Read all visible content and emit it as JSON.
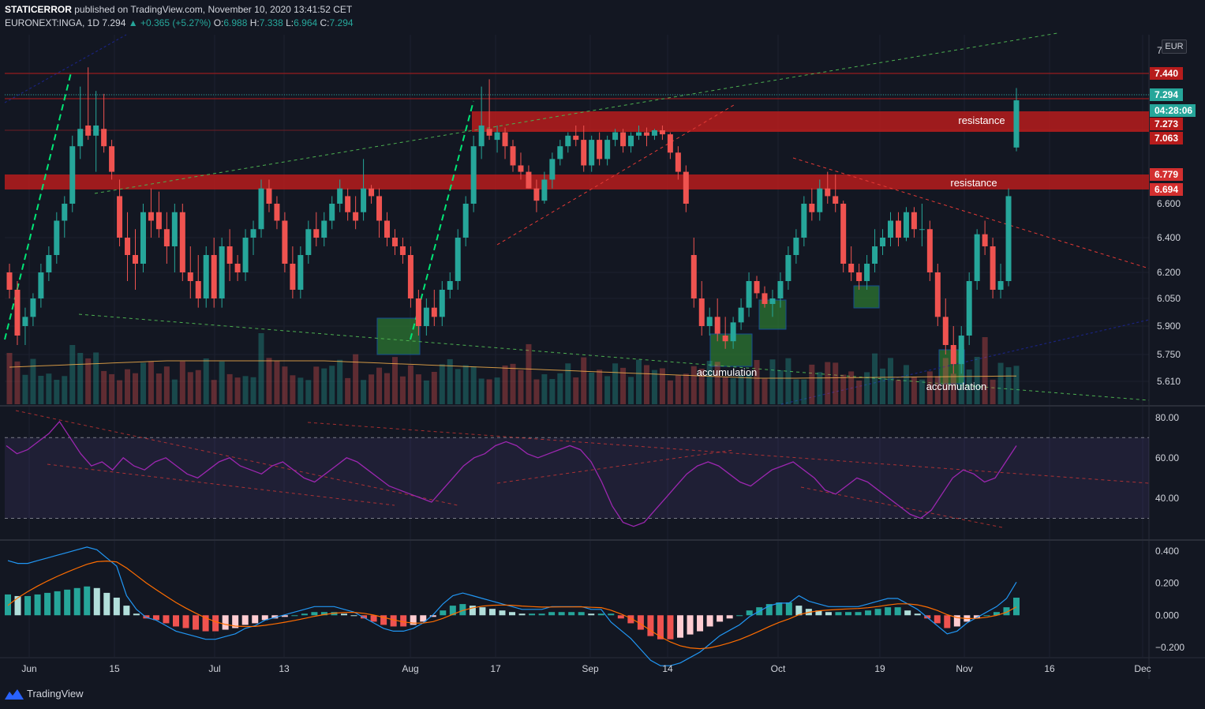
{
  "header": {
    "publisher": "STATICERROR",
    "published_text": "published on TradingView.com, November 10, 2020 13:41:52 CET",
    "symbol": "EURONEXT:INGA, 1D",
    "last": "7.294",
    "change": "▲ +0.365 (+5.27%)",
    "open_label": "O:",
    "open": "6.988",
    "high_label": "H:",
    "high": "7.338",
    "low_label": "L:",
    "low": "6.964",
    "close_label": "C:",
    "close": "7.294"
  },
  "currency": "EUR",
  "footer": {
    "brand": "TradingView"
  },
  "colors": {
    "up": "#26a69a",
    "down": "#ef5350",
    "bg": "#131722",
    "zone": "#b71c1c",
    "accum": "#2e7d32",
    "rsi": "#9c27b0",
    "macd": "#2196f3",
    "signal": "#ff6d00"
  },
  "price_axis": {
    "labels": [
      "7",
      "6.600",
      "6.400",
      "6.200",
      "6.050",
      "5.900",
      "5.750",
      "5.610"
    ]
  },
  "price_badges": [
    {
      "text": "7.440",
      "color": "#b71c1c"
    },
    {
      "text": "7.294",
      "color": "#26a69a"
    },
    {
      "text": "04:28:06",
      "color": "#26a69a"
    },
    {
      "text": "7.273",
      "color": "#b71c1c"
    },
    {
      "text": "7.063",
      "color": "#b71c1c"
    },
    {
      "text": "6.779",
      "color": "#d32f2f"
    },
    {
      "text": "6.694",
      "color": "#d32f2f"
    }
  ],
  "rsi_axis": {
    "labels": [
      "80.00",
      "60.00",
      "40.00"
    ]
  },
  "macd_axis": {
    "labels": [
      "0.400",
      "0.200",
      "0.000",
      "−0.200"
    ]
  },
  "time_axis": {
    "labels": [
      "Jun",
      "15",
      "Jul",
      "13",
      "Aug",
      "17",
      "Sep",
      "14",
      "Oct",
      "19",
      "Nov",
      "16",
      "Dec"
    ]
  },
  "annotations": {
    "resistance_upper": "resistance",
    "resistance_lower": "resistance",
    "accumulation_1": "accumulation",
    "accumulation_2": "accumulation"
  },
  "chart_data": [
    {
      "type": "candlestick",
      "title": "EURONEXT:INGA, 1D",
      "ylabel": "EUR",
      "ylim": [
        5.5,
        7.5
      ],
      "zones": [
        {
          "name": "resistance",
          "from": 7.063,
          "to": 7.273
        },
        {
          "name": "resistance",
          "from": 6.694,
          "to": 6.779
        }
      ],
      "lines": [
        {
          "name": "horizontal",
          "value": 7.44
        }
      ],
      "candles": [
        [
          6.2,
          6.25,
          6.05,
          6.1
        ],
        [
          6.1,
          6.15,
          5.8,
          5.85
        ],
        [
          5.9,
          6.0,
          5.8,
          5.95
        ],
        [
          5.95,
          6.08,
          5.9,
          6.05
        ],
        [
          6.05,
          6.25,
          6.0,
          6.2
        ],
        [
          6.2,
          6.35,
          6.15,
          6.3
        ],
        [
          6.3,
          6.55,
          6.25,
          6.5
        ],
        [
          6.5,
          6.65,
          6.4,
          6.6
        ],
        [
          6.6,
          7.1,
          6.55,
          7.0
        ],
        [
          7.0,
          7.35,
          6.9,
          7.2
        ],
        [
          7.25,
          7.48,
          7.05,
          7.1
        ],
        [
          7.1,
          7.32,
          6.8,
          7.25
        ],
        [
          7.2,
          7.3,
          6.95,
          7.0
        ],
        [
          7.0,
          7.05,
          6.75,
          6.8
        ],
        [
          6.65,
          6.75,
          6.35,
          6.4
        ],
        [
          6.4,
          6.55,
          6.15,
          6.3
        ],
        [
          6.3,
          6.45,
          6.1,
          6.25
        ],
        [
          6.25,
          6.6,
          6.2,
          6.55
        ],
        [
          6.55,
          6.7,
          6.4,
          6.5
        ],
        [
          6.55,
          6.68,
          6.4,
          6.45
        ],
        [
          6.45,
          6.55,
          6.25,
          6.35
        ],
        [
          6.35,
          6.6,
          6.2,
          6.55
        ],
        [
          6.55,
          6.6,
          6.15,
          6.2
        ],
        [
          6.2,
          6.35,
          6.05,
          6.15
        ],
        [
          6.15,
          6.3,
          6.0,
          6.05
        ],
        [
          6.05,
          6.35,
          6.0,
          6.3
        ],
        [
          6.3,
          6.4,
          6.0,
          6.05
        ],
        [
          6.05,
          6.4,
          6.0,
          6.35
        ],
        [
          6.35,
          6.45,
          6.15,
          6.25
        ],
        [
          6.25,
          6.3,
          6.15,
          6.2
        ],
        [
          6.2,
          6.45,
          6.15,
          6.4
        ],
        [
          6.4,
          6.5,
          6.3,
          6.45
        ],
        [
          6.45,
          6.75,
          6.4,
          6.7
        ],
        [
          6.7,
          6.75,
          6.55,
          6.6
        ],
        [
          6.6,
          6.65,
          6.45,
          6.5
        ],
        [
          6.5,
          6.55,
          6.2,
          6.25
        ],
        [
          6.25,
          6.35,
          6.05,
          6.1
        ],
        [
          6.1,
          6.35,
          6.05,
          6.3
        ],
        [
          6.3,
          6.5,
          6.25,
          6.45
        ],
        [
          6.45,
          6.55,
          6.35,
          6.4
        ],
        [
          6.4,
          6.55,
          6.35,
          6.5
        ],
        [
          6.5,
          6.65,
          6.45,
          6.6
        ],
        [
          6.6,
          6.75,
          6.55,
          6.7
        ],
        [
          6.65,
          6.7,
          6.5,
          6.55
        ],
        [
          6.55,
          6.65,
          6.45,
          6.5
        ],
        [
          6.55,
          6.9,
          6.5,
          6.7
        ],
        [
          6.7,
          6.72,
          6.6,
          6.65
        ],
        [
          6.65,
          6.7,
          6.4,
          6.5
        ],
        [
          6.5,
          6.55,
          6.35,
          6.4
        ],
        [
          6.4,
          6.45,
          6.3,
          6.35
        ],
        [
          6.35,
          6.4,
          6.25,
          6.3
        ],
        [
          6.3,
          6.35,
          6.0,
          6.05
        ],
        [
          6.05,
          6.1,
          5.85,
          5.9
        ],
        [
          5.9,
          6.05,
          5.85,
          6.0
        ],
        [
          6.0,
          6.1,
          5.9,
          5.95
        ],
        [
          5.95,
          6.15,
          5.9,
          6.1
        ],
        [
          6.1,
          6.2,
          6.05,
          6.15
        ],
        [
          6.15,
          6.45,
          6.1,
          6.4
        ],
        [
          6.4,
          6.65,
          6.35,
          6.6
        ],
        [
          6.6,
          7.1,
          6.55,
          7.0
        ],
        [
          7.0,
          7.35,
          6.9,
          7.25
        ],
        [
          7.2,
          7.4,
          7.05,
          7.1
        ],
        [
          7.05,
          7.25,
          6.95,
          7.15
        ],
        [
          7.15,
          7.22,
          6.9,
          7.0
        ],
        [
          7.0,
          7.05,
          6.8,
          6.85
        ],
        [
          6.85,
          6.95,
          6.75,
          6.8
        ],
        [
          6.8,
          6.85,
          6.7,
          6.7
        ],
        [
          6.7,
          6.75,
          6.55,
          6.62
        ],
        [
          6.62,
          6.8,
          6.6,
          6.75
        ],
        [
          6.75,
          6.95,
          6.7,
          6.9
        ],
        [
          6.9,
          7.05,
          6.85,
          7.0
        ],
        [
          7.0,
          7.15,
          6.95,
          7.1
        ],
        [
          7.1,
          7.25,
          7.0,
          7.05
        ],
        [
          7.05,
          7.25,
          6.8,
          6.85
        ],
        [
          6.85,
          7.1,
          6.8,
          7.05
        ],
        [
          7.05,
          7.15,
          6.85,
          6.9
        ],
        [
          6.9,
          7.1,
          6.85,
          7.05
        ],
        [
          7.05,
          7.2,
          7.0,
          7.15
        ],
        [
          7.15,
          7.2,
          6.95,
          7.0
        ],
        [
          7.0,
          7.15,
          6.95,
          7.1
        ],
        [
          7.1,
          7.25,
          7.05,
          7.15
        ],
        [
          7.15,
          7.22,
          7.0,
          7.1
        ],
        [
          7.1,
          7.2,
          7.05,
          7.18
        ],
        [
          7.18,
          7.25,
          7.05,
          7.12
        ],
        [
          7.12,
          7.15,
          6.9,
          6.95
        ],
        [
          6.95,
          7.0,
          6.75,
          6.8
        ],
        [
          6.8,
          6.85,
          6.55,
          6.6
        ],
        [
          6.3,
          6.4,
          6.0,
          6.05
        ],
        [
          6.05,
          6.15,
          5.85,
          5.9
        ],
        [
          5.9,
          6.0,
          5.85,
          5.95
        ],
        [
          5.95,
          6.05,
          5.82,
          5.86
        ],
        [
          5.85,
          5.95,
          5.78,
          5.82
        ],
        [
          5.82,
          5.95,
          5.78,
          5.92
        ],
        [
          5.92,
          6.05,
          5.88,
          6.0
        ],
        [
          6.0,
          6.2,
          5.95,
          6.15
        ],
        [
          6.15,
          6.18,
          6.05,
          6.08
        ],
        [
          6.08,
          6.12,
          6.0,
          6.02
        ],
        [
          6.02,
          6.1,
          5.95,
          6.05
        ],
        [
          6.05,
          6.2,
          6.0,
          6.15
        ],
        [
          6.15,
          6.35,
          6.1,
          6.3
        ],
        [
          6.3,
          6.45,
          6.25,
          6.4
        ],
        [
          6.4,
          6.65,
          6.35,
          6.6
        ],
        [
          6.6,
          6.7,
          6.5,
          6.55
        ],
        [
          6.55,
          6.75,
          6.5,
          6.7
        ],
        [
          6.7,
          6.8,
          6.6,
          6.65
        ],
        [
          6.65,
          6.78,
          6.55,
          6.6
        ],
        [
          6.6,
          6.62,
          6.2,
          6.25
        ],
        [
          6.25,
          6.35,
          6.15,
          6.2
        ],
        [
          6.2,
          6.25,
          6.1,
          6.15
        ],
        [
          6.15,
          6.3,
          6.1,
          6.25
        ],
        [
          6.25,
          6.45,
          6.2,
          6.35
        ],
        [
          6.35,
          6.45,
          6.3,
          6.4
        ],
        [
          6.4,
          6.55,
          6.35,
          6.5
        ],
        [
          6.5,
          6.55,
          6.35,
          6.4
        ],
        [
          6.4,
          6.58,
          6.38,
          6.55
        ],
        [
          6.55,
          6.58,
          6.4,
          6.45
        ],
        [
          6.45,
          6.6,
          6.35,
          6.45
        ],
        [
          6.45,
          6.5,
          6.15,
          6.2
        ],
        [
          6.2,
          6.25,
          5.9,
          5.95
        ],
        [
          5.95,
          6.05,
          5.75,
          5.8
        ],
        [
          5.8,
          5.9,
          5.65,
          5.7
        ],
        [
          5.7,
          5.9,
          5.65,
          5.85
        ],
        [
          5.85,
          6.2,
          5.8,
          6.15
        ],
        [
          6.15,
          6.45,
          6.1,
          6.42
        ],
        [
          6.42,
          6.5,
          6.3,
          6.35
        ],
        [
          6.35,
          6.4,
          6.05,
          6.1
        ],
        [
          6.1,
          6.25,
          6.05,
          6.15
        ],
        [
          6.15,
          6.7,
          6.12,
          6.65
        ],
        [
          6.99,
          7.34,
          6.96,
          7.29
        ]
      ]
    },
    {
      "type": "line",
      "title": "RSI",
      "ylim": [
        20,
        85
      ],
      "levels": [
        70,
        30
      ],
      "series": [
        {
          "values": [
            66,
            62,
            64,
            68,
            72,
            78,
            70,
            62,
            56,
            58,
            54,
            60,
            56,
            54,
            58,
            60,
            56,
            52,
            50,
            54,
            58,
            60,
            56,
            54,
            52,
            56,
            58,
            54,
            50,
            48,
            52,
            56,
            60,
            58,
            54,
            50,
            46,
            44,
            42,
            40,
            38,
            44,
            50,
            56,
            60,
            62,
            66,
            68,
            66,
            62,
            60,
            62,
            64,
            66,
            64,
            58,
            48,
            36,
            28,
            26,
            28,
            34,
            40,
            46,
            52,
            56,
            58,
            56,
            52,
            48,
            46,
            50,
            54,
            56,
            58,
            54,
            50,
            44,
            42,
            46,
            50,
            48,
            44,
            40,
            36,
            32,
            30,
            34,
            42,
            50,
            54,
            52,
            48,
            50,
            58,
            66
          ]
        }
      ]
    },
    {
      "type": "bar",
      "title": "MACD",
      "ylim": [
        -0.26,
        0.46
      ],
      "series": [
        {
          "values": [
            0.13,
            0.12,
            0.12,
            0.13,
            0.14,
            0.15,
            0.16,
            0.17,
            0.18,
            0.17,
            0.14,
            0.11,
            0.06,
            0.01,
            -0.02,
            -0.03,
            -0.05,
            -0.07,
            -0.08,
            -0.09,
            -0.1,
            -0.1,
            -0.09,
            -0.08,
            -0.06,
            -0.05,
            -0.03,
            -0.02,
            -0.01,
            0,
            0.01,
            0.02,
            0.02,
            0.02,
            0.01,
            0,
            -0.02,
            -0.04,
            -0.06,
            -0.07,
            -0.07,
            -0.06,
            -0.04,
            -0.01,
            0.03,
            0.06,
            0.07,
            0.06,
            0.05,
            0.04,
            0.03,
            0.02,
            0.01,
            0.01,
            0.01,
            0.02,
            0.02,
            0.02,
            0.02,
            0.01,
            0.01,
            0.01,
            -0.02,
            -0.05,
            -0.09,
            -0.13,
            -0.15,
            -0.15,
            -0.14,
            -0.12,
            -0.1,
            -0.07,
            -0.04,
            -0.02,
            0,
            0.03,
            0.05,
            0.07,
            0.08,
            0.08,
            0.06,
            0.04,
            0.03,
            0.02,
            0.02,
            0.02,
            0.02,
            0.03,
            0.04,
            0.05,
            0.05,
            0.03,
            0.01,
            -0.02,
            -0.05,
            -0.08,
            -0.07,
            -0.04,
            -0.02,
            0,
            0.02,
            0.05,
            0.11
          ]
        }
      ]
    }
  ]
}
